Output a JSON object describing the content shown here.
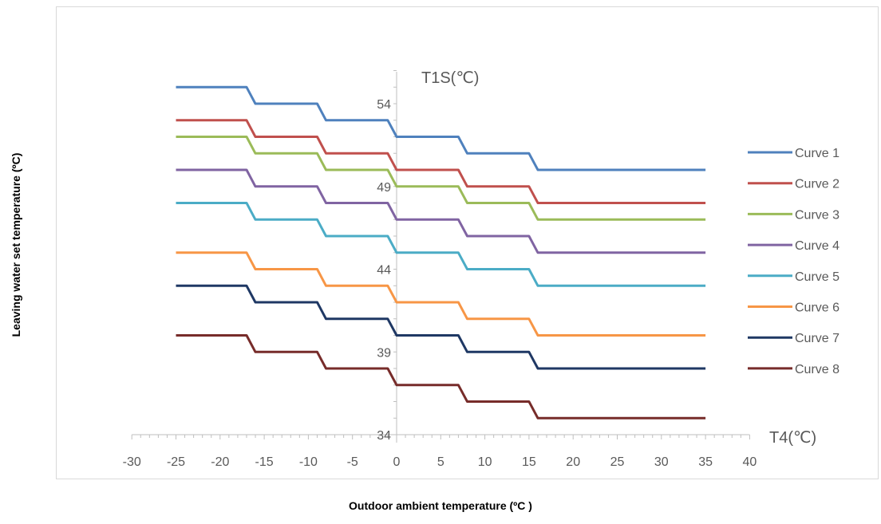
{
  "chart_data": {
    "type": "line",
    "xlabel": "Outdoor ambient temperature (ºC )",
    "ylabel": "Leaving water set temperature (ºC)",
    "x_axis_title": "T4(℃)",
    "y_axis_title": "T1S(℃)",
    "xlim": [
      -30,
      40
    ],
    "ylim": [
      34,
      55
    ],
    "x_ticks": [
      -30,
      -25,
      -20,
      -15,
      -10,
      -5,
      0,
      5,
      10,
      15,
      20,
      25,
      30,
      35,
      40
    ],
    "y_ticks": [
      34,
      39,
      44,
      49,
      54
    ],
    "grid": false,
    "legend_position": "right",
    "series": [
      {
        "name": "Curve 1",
        "color": "#4f81bd",
        "x": [
          -25,
          -17,
          -16,
          -9,
          -8,
          -1,
          0,
          7,
          8,
          15,
          16,
          35
        ],
        "y": [
          55,
          55,
          54,
          54,
          53,
          53,
          52,
          52,
          51,
          51,
          50,
          50
        ]
      },
      {
        "name": "Curve 2",
        "color": "#c0504d",
        "x": [
          -25,
          -17,
          -16,
          -9,
          -8,
          -1,
          0,
          7,
          8,
          15,
          16,
          35
        ],
        "y": [
          53,
          53,
          52,
          52,
          51,
          51,
          50,
          50,
          49,
          49,
          48,
          48
        ]
      },
      {
        "name": "Curve 3",
        "color": "#9bbb59",
        "x": [
          -25,
          -17,
          -16,
          -9,
          -8,
          -1,
          0,
          7,
          8,
          15,
          16,
          35
        ],
        "y": [
          52,
          52,
          51,
          51,
          50,
          50,
          49,
          49,
          48,
          48,
          47,
          47
        ]
      },
      {
        "name": "Curve 4",
        "color": "#8064a2",
        "x": [
          -25,
          -17,
          -16,
          -9,
          -8,
          -1,
          0,
          7,
          8,
          15,
          16,
          35
        ],
        "y": [
          50,
          50,
          49,
          49,
          48,
          48,
          47,
          47,
          46,
          46,
          45,
          45
        ]
      },
      {
        "name": "Curve 5",
        "color": "#4bacc6",
        "x": [
          -25,
          -17,
          -16,
          -9,
          -8,
          -1,
          0,
          7,
          8,
          15,
          16,
          35
        ],
        "y": [
          48,
          48,
          47,
          47,
          46,
          46,
          45,
          45,
          44,
          44,
          43,
          43
        ]
      },
      {
        "name": "Curve 6",
        "color": "#f79646",
        "x": [
          -25,
          -17,
          -16,
          -9,
          -8,
          -1,
          0,
          7,
          8,
          15,
          16,
          35
        ],
        "y": [
          45,
          45,
          44,
          44,
          43,
          43,
          42,
          42,
          41,
          41,
          40,
          40
        ]
      },
      {
        "name": "Curve 7",
        "color": "#1f3864",
        "x": [
          -25,
          -17,
          -16,
          -9,
          -8,
          -1,
          0,
          7,
          8,
          15,
          16,
          35
        ],
        "y": [
          43,
          43,
          42,
          42,
          41,
          41,
          40,
          40,
          39,
          39,
          38,
          38
        ]
      },
      {
        "name": "Curve 8",
        "color": "#772c2a",
        "x": [
          -25,
          -17,
          -16,
          -9,
          -8,
          -1,
          0,
          7,
          8,
          15,
          16,
          35
        ],
        "y": [
          40,
          40,
          39,
          39,
          38,
          38,
          37,
          37,
          36,
          36,
          35,
          35
        ]
      }
    ]
  }
}
